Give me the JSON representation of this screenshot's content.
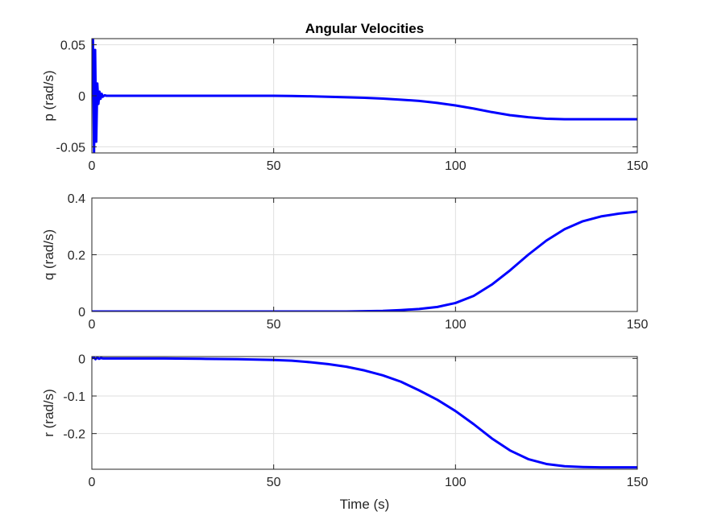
{
  "chart_data": [
    {
      "type": "line",
      "title": "Angular Velocities",
      "xlabel": "",
      "ylabel": "p (rad/s)",
      "xlim": [
        0,
        150
      ],
      "ylim": [
        -0.056,
        0.056
      ],
      "xticks": [
        0,
        50,
        100,
        150
      ],
      "xtick_labels": [
        "0",
        "50",
        "100",
        "150"
      ],
      "yticks": [
        0.05,
        0,
        -0.05
      ],
      "ytick_labels": [
        "0.05",
        "0",
        "-0.05"
      ],
      "grid": true,
      "series": [
        {
          "color": "#0000ff",
          "x": [
            0,
            0.3,
            0.6,
            0.9,
            1.2,
            1.5,
            1.8,
            2.1,
            2.4,
            2.7,
            3.0,
            3.5,
            4.0,
            5,
            10,
            20,
            30,
            40,
            50,
            55,
            60,
            65,
            70,
            75,
            80,
            85,
            90,
            95,
            100,
            105,
            110,
            115,
            120,
            125,
            130,
            135,
            140,
            145,
            150
          ],
          "y": [
            0,
            0.056,
            -0.056,
            0.045,
            -0.045,
            0.012,
            -0.008,
            0.004,
            -0.003,
            0.002,
            -0.001,
            0.0005,
            0,
            0,
            0,
            0,
            0,
            0,
            0,
            -0.0002,
            -0.0005,
            -0.001,
            -0.0015,
            -0.002,
            -0.0028,
            -0.0038,
            -0.005,
            -0.007,
            -0.0095,
            -0.0125,
            -0.016,
            -0.019,
            -0.021,
            -0.0225,
            -0.023,
            -0.023,
            -0.023,
            -0.023,
            -0.023
          ]
        }
      ]
    },
    {
      "type": "line",
      "title": "",
      "xlabel": "",
      "ylabel": "q (rad/s)",
      "xlim": [
        0,
        150
      ],
      "ylim": [
        0,
        0.4
      ],
      "xticks": [
        0,
        50,
        100,
        150
      ],
      "xtick_labels": [
        "0",
        "50",
        "100",
        "150"
      ],
      "yticks": [
        0.4,
        0.2,
        0
      ],
      "ytick_labels": [
        "0.4",
        "0.2",
        "0"
      ],
      "grid": true,
      "series": [
        {
          "color": "#0000ff",
          "x": [
            0,
            10,
            20,
            30,
            40,
            50,
            60,
            70,
            75,
            80,
            85,
            90,
            95,
            100,
            105,
            110,
            115,
            120,
            125,
            130,
            135,
            140,
            145,
            150
          ],
          "y": [
            0,
            0,
            0,
            0,
            0,
            0,
            0,
            0,
            0.001,
            0.002,
            0.005,
            0.009,
            0.016,
            0.03,
            0.055,
            0.095,
            0.145,
            0.2,
            0.25,
            0.29,
            0.318,
            0.335,
            0.345,
            0.352
          ]
        }
      ]
    },
    {
      "type": "line",
      "title": "",
      "xlabel": "Time (s)",
      "ylabel": "r (rad/s)",
      "xlim": [
        0,
        150
      ],
      "ylim": [
        -0.295,
        0.005
      ],
      "xticks": [
        0,
        50,
        100,
        150
      ],
      "xtick_labels": [
        "0",
        "50",
        "100",
        "150"
      ],
      "yticks": [
        0,
        -0.1,
        -0.2
      ],
      "ytick_labels": [
        "0",
        "-0.1",
        "-0.2"
      ],
      "grid": true,
      "series": [
        {
          "color": "#0000ff",
          "x": [
            0,
            0.5,
            1.0,
            1.5,
            2.0,
            2.5,
            3.0,
            4,
            10,
            20,
            30,
            40,
            50,
            55,
            60,
            65,
            70,
            75,
            80,
            85,
            90,
            95,
            100,
            105,
            110,
            115,
            120,
            125,
            130,
            135,
            140,
            145,
            150
          ],
          "y": [
            0,
            0.003,
            -0.002,
            0.002,
            -0.001,
            0.001,
            0,
            0,
            0,
            0,
            -0.001,
            -0.002,
            -0.004,
            -0.006,
            -0.01,
            -0.015,
            -0.022,
            -0.032,
            -0.045,
            -0.062,
            -0.085,
            -0.11,
            -0.14,
            -0.175,
            -0.213,
            -0.245,
            -0.268,
            -0.281,
            -0.287,
            -0.289,
            -0.29,
            -0.29,
            -0.29
          ]
        }
      ]
    }
  ]
}
